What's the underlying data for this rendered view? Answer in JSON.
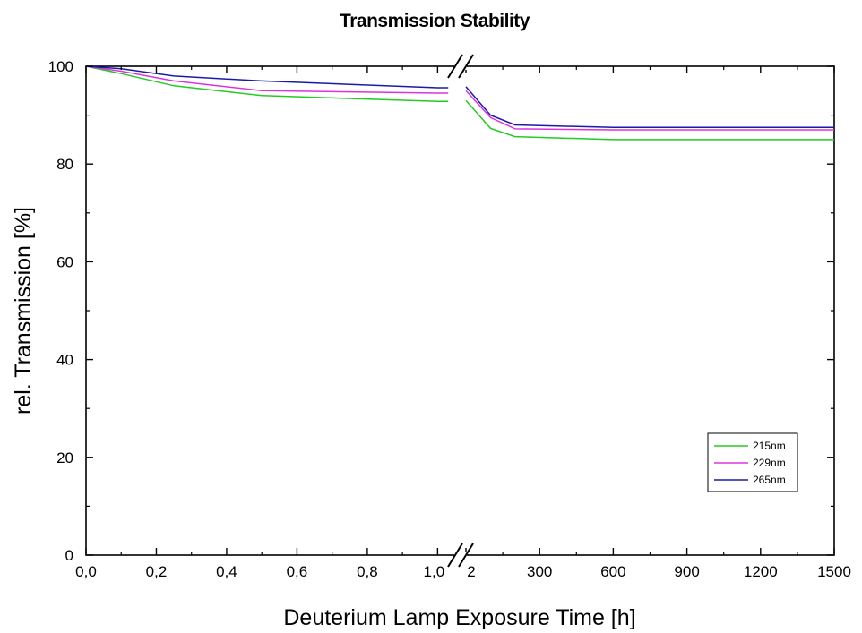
{
  "chart_data": {
    "type": "line",
    "title": "Transmission Stability",
    "xlabel": "Deuterium Lamp Exposure Time [h]",
    "ylabel": "rel. Transmission [%]",
    "ylim": [
      0,
      100
    ],
    "y_ticks": [
      "0",
      "20",
      "40",
      "60",
      "80",
      "100"
    ],
    "axis_break": true,
    "segments": [
      {
        "xlim": [
          0,
          1.05
        ],
        "x_ticks": [
          {
            "value": 0,
            "label": "0,0"
          },
          {
            "value": 0.2,
            "label": "0,2"
          },
          {
            "value": 0.4,
            "label": "0,4"
          },
          {
            "value": 0.6,
            "label": "0,6"
          },
          {
            "value": 0.8,
            "label": "0,8"
          },
          {
            "value": 1.0,
            "label": "1,0"
          }
        ]
      },
      {
        "xlim": [
          0,
          1500
        ],
        "x_ticks": [
          {
            "value": 0,
            "label": "2"
          },
          {
            "value": 300,
            "label": "300"
          },
          {
            "value": 600,
            "label": "600"
          },
          {
            "value": 900,
            "label": "900"
          },
          {
            "value": 1200,
            "label": "1200"
          },
          {
            "value": 1500,
            "label": "1500"
          }
        ]
      }
    ],
    "series": [
      {
        "name": "215nm",
        "color": "#22cc22",
        "segments": [
          [
            [
              0,
              100
            ],
            [
              0.1,
              98.5
            ],
            [
              0.25,
              96
            ],
            [
              0.5,
              94
            ],
            [
              1.0,
              92.8
            ],
            [
              1.03,
              92.8
            ]
          ],
          [
            [
              0,
              93
            ],
            [
              100,
              87.3
            ],
            [
              200,
              85.6
            ],
            [
              600,
              85.0
            ],
            [
              1500,
              85.0
            ]
          ]
        ]
      },
      {
        "name": "229nm",
        "color": "#dd33dd",
        "segments": [
          [
            [
              0,
              100
            ],
            [
              0.1,
              99
            ],
            [
              0.25,
              97
            ],
            [
              0.5,
              95
            ],
            [
              1.0,
              94.5
            ],
            [
              1.03,
              94.5
            ]
          ],
          [
            [
              0,
              95
            ],
            [
              100,
              89.5
            ],
            [
              200,
              87.2
            ],
            [
              600,
              87.0
            ],
            [
              1500,
              87.0
            ]
          ]
        ]
      },
      {
        "name": "265nm",
        "color": "#1a1aaa",
        "segments": [
          [
            [
              0,
              100
            ],
            [
              0.1,
              99.5
            ],
            [
              0.25,
              98
            ],
            [
              0.5,
              97
            ],
            [
              1.0,
              95.6
            ],
            [
              1.03,
              95.6
            ]
          ],
          [
            [
              0,
              95.8
            ],
            [
              100,
              90
            ],
            [
              200,
              88
            ],
            [
              600,
              87.5
            ],
            [
              1500,
              87.5
            ]
          ]
        ]
      }
    ],
    "legend": "bottom-right",
    "grid": false
  }
}
